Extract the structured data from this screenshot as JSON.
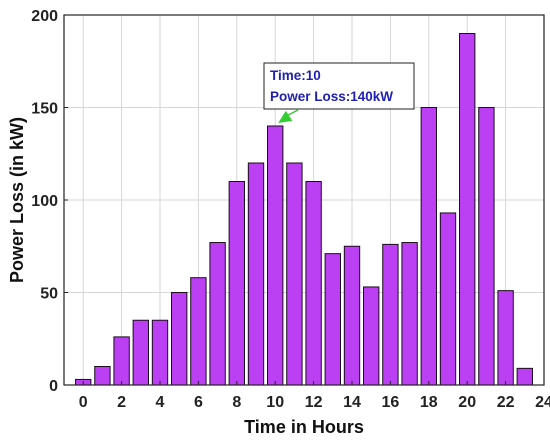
{
  "chart_data": {
    "type": "bar",
    "title": "",
    "xlabel": "Time in Hours",
    "ylabel": "Power Loss (in kW)",
    "xlim": [
      -1,
      24
    ],
    "ylim": [
      0,
      200
    ],
    "x_ticks": [
      0,
      2,
      4,
      6,
      8,
      10,
      12,
      14,
      16,
      18,
      20,
      22,
      24
    ],
    "y_ticks": [
      0,
      50,
      100,
      150,
      200
    ],
    "grid": true,
    "bar_color": "#bb3ff3",
    "x": [
      0,
      1,
      2,
      3,
      4,
      5,
      6,
      7,
      8,
      9,
      10,
      11,
      12,
      13,
      14,
      15,
      16,
      17,
      18,
      19,
      20,
      21,
      22,
      23
    ],
    "values": [
      3,
      10,
      26,
      35,
      35,
      50,
      58,
      77,
      110,
      120,
      140,
      120,
      110,
      71,
      75,
      53,
      76,
      77,
      150,
      93,
      190,
      150,
      51,
      9
    ],
    "annotation": {
      "x": 10,
      "y": 140,
      "line1": "Time:10",
      "line2": "Power Loss:140kW",
      "text_color": "#1f1fb4",
      "arrow_color": "#33cc33"
    }
  }
}
